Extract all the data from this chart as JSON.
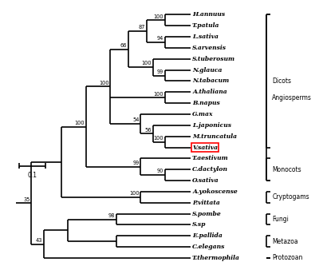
{
  "background_color": "#ffffff",
  "scale_bar_label": "0.1",
  "taxa": [
    "H.annuus",
    "T.patula",
    "L.sativa",
    "S.arvensis",
    "S.tuberosum",
    "N.glauca",
    "N.tabacum",
    "A.thaliana",
    "B.napus",
    "G.max",
    "L.japonicus",
    "M.truncatula",
    "V.sativa",
    "T.aestivum",
    "C.dactylon",
    "O.sativa",
    "A.yokoscense",
    "P.vittata",
    "S.pombe",
    "S.sp",
    "E.pallida",
    "C.elegans",
    "T.thermophila"
  ],
  "highlighted_taxon": "V.sativa",
  "group_data": [
    {
      "name": "Dicots",
      "top": "H.annuus",
      "bot": "V.sativa"
    },
    {
      "name": "Angiosperms",
      "top": "H.annuus",
      "bot": "O.sativa"
    },
    {
      "name": "Monocots",
      "top": "T.aestivum",
      "bot": "O.sativa"
    },
    {
      "name": "Cryptogams",
      "top": "A.yokoscense",
      "bot": "P.vittata"
    },
    {
      "name": "Fungi",
      "top": "S.pombe",
      "bot": "S.sp"
    },
    {
      "name": "Metazoa",
      "top": "E.pallida",
      "bot": "C.elegans"
    },
    {
      "name": "Protozoan",
      "top": "T.thermophila",
      "bot": "T.thermophila"
    }
  ]
}
